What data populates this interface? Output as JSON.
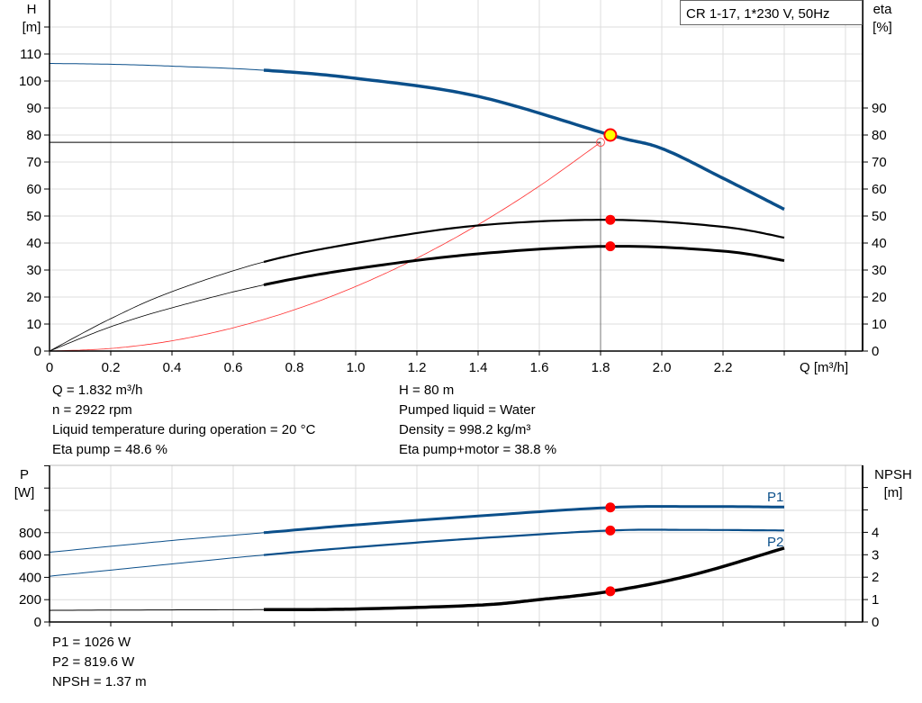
{
  "chart_data": [
    {
      "type": "line",
      "legend_box": "CR 1-17, 1*230 V, 50Hz",
      "xlabel": "Q [m³/h]",
      "ylabel_left": [
        "H",
        "[m]"
      ],
      "ylabel_right": [
        "eta",
        "[%]"
      ],
      "xlim": [
        0,
        2.6
      ],
      "ylim_left": [
        0,
        130
      ],
      "ylim_right": [
        0,
        130
      ],
      "x_ticks": [
        "0",
        "0.2",
        "0.4",
        "0.6",
        "0.8",
        "1.0",
        "1.2",
        "1.4",
        "1.6",
        "1.8",
        "2.0",
        "2.2"
      ],
      "y_ticks_left": [
        "0",
        "10",
        "20",
        "30",
        "40",
        "50",
        "60",
        "70",
        "80",
        "90",
        "100",
        "110"
      ],
      "y_ticks_right": [
        "0",
        "10",
        "20",
        "30",
        "40",
        "50",
        "60",
        "70",
        "80",
        "90"
      ],
      "grid": true,
      "series": [
        {
          "key": "H",
          "axis": "left",
          "color": "#0b4f8a",
          "thin_until": 0.7,
          "x": [
            0,
            0.2,
            0.4,
            0.7,
            1.0,
            1.4,
            1.832,
            2.0,
            2.2,
            2.4
          ],
          "y": [
            106.5,
            106.2,
            105.5,
            104,
            101,
            94.3,
            80,
            75,
            64,
            52.5
          ]
        },
        {
          "key": "eta_pump",
          "axis": "right",
          "color": "#000000",
          "thin_until": 0.7,
          "x": [
            0,
            0.2,
            0.4,
            0.7,
            1.0,
            1.4,
            1.832,
            2.2,
            2.4
          ],
          "y": [
            0,
            12,
            22,
            33,
            40,
            46.5,
            48.6,
            46,
            42
          ]
        },
        {
          "key": "eta_pump_motor",
          "axis": "right",
          "color": "#000000",
          "thin_until": 0.7,
          "x": [
            0,
            0.2,
            0.4,
            0.7,
            1.0,
            1.4,
            1.832,
            2.2,
            2.4
          ],
          "y": [
            0,
            9,
            16,
            24.5,
            30.5,
            36,
            38.8,
            37,
            33.5
          ]
        },
        {
          "key": "system_curve",
          "axis": "left",
          "color": "#ff3030",
          "x": [
            0,
            0.2,
            0.4,
            0.6,
            0.8,
            1.0,
            1.2,
            1.4,
            1.6,
            1.8
          ],
          "y": [
            0,
            0.95,
            3.8,
            8.6,
            15.3,
            23.9,
            34.4,
            46.8,
            61.1,
            77.3
          ]
        }
      ],
      "duty_point": {
        "q": 1.832,
        "h": 80,
        "color": "#ffff00"
      },
      "intersection": {
        "q": 1.8,
        "h": 77.3
      },
      "markers": [
        {
          "q": 1.832,
          "eta": 48.6
        },
        {
          "q": 1.832,
          "eta": 38.8
        }
      ],
      "marker_color": "#ff0000"
    },
    {
      "type": "line",
      "ylabel_left": [
        "P",
        "[W]"
      ],
      "ylabel_right": [
        "NPSH",
        "[m]"
      ],
      "xlim": [
        0,
        2.6
      ],
      "ylim_left": [
        0,
        1400
      ],
      "ylim_right": [
        0,
        7
      ],
      "y_ticks_left": [
        "0",
        "200",
        "400",
        "600",
        "800"
      ],
      "y_ticks_right": [
        "0",
        "1",
        "2",
        "3",
        "4"
      ],
      "grid": true,
      "series": [
        {
          "key": "P1",
          "name": "P1",
          "axis": "left",
          "color": "#0b4f8a",
          "thin_until": 0.7,
          "x": [
            0,
            0.4,
            0.7,
            1.0,
            1.4,
            1.832,
            2.1,
            2.4
          ],
          "y": [
            625,
            730,
            800,
            870,
            950,
            1026,
            1035,
            1030
          ]
        },
        {
          "key": "P2",
          "name": "P2",
          "axis": "left",
          "color": "#0b4f8a",
          "thin_until": 0.7,
          "x": [
            0,
            0.4,
            0.7,
            1.0,
            1.4,
            1.832,
            2.1,
            2.4
          ],
          "y": [
            410,
            520,
            600,
            670,
            750,
            819.6,
            825,
            820
          ]
        },
        {
          "key": "NPSH",
          "axis": "right",
          "color": "#000000",
          "thin_until": 0.7,
          "x": [
            0,
            0.4,
            0.7,
            1.0,
            1.4,
            1.6,
            1.832,
            2.1,
            2.4
          ],
          "y": [
            0.52,
            0.54,
            0.55,
            0.58,
            0.75,
            1.0,
            1.37,
            2.1,
            3.3
          ]
        }
      ],
      "markers": [
        {
          "q": 1.832,
          "p": 1026
        },
        {
          "q": 1.832,
          "p": 819.6
        },
        {
          "q": 1.832,
          "npsh": 1.37
        }
      ]
    }
  ],
  "info_top_left": [
    "Q = 1.832 m³/h",
    "n = 2922 rpm",
    "Liquid temperature during operation = 20 °C",
    "Eta pump = 48.6 %"
  ],
  "info_top_right": [
    "H = 80 m",
    "Pumped liquid = Water",
    "Density = 998.2 kg/m³",
    "Eta pump+motor = 38.8 %"
  ],
  "info_bottom": [
    "P1 = 1026 W",
    "P2 = 819.6 W",
    "NPSH = 1.37 m"
  ]
}
